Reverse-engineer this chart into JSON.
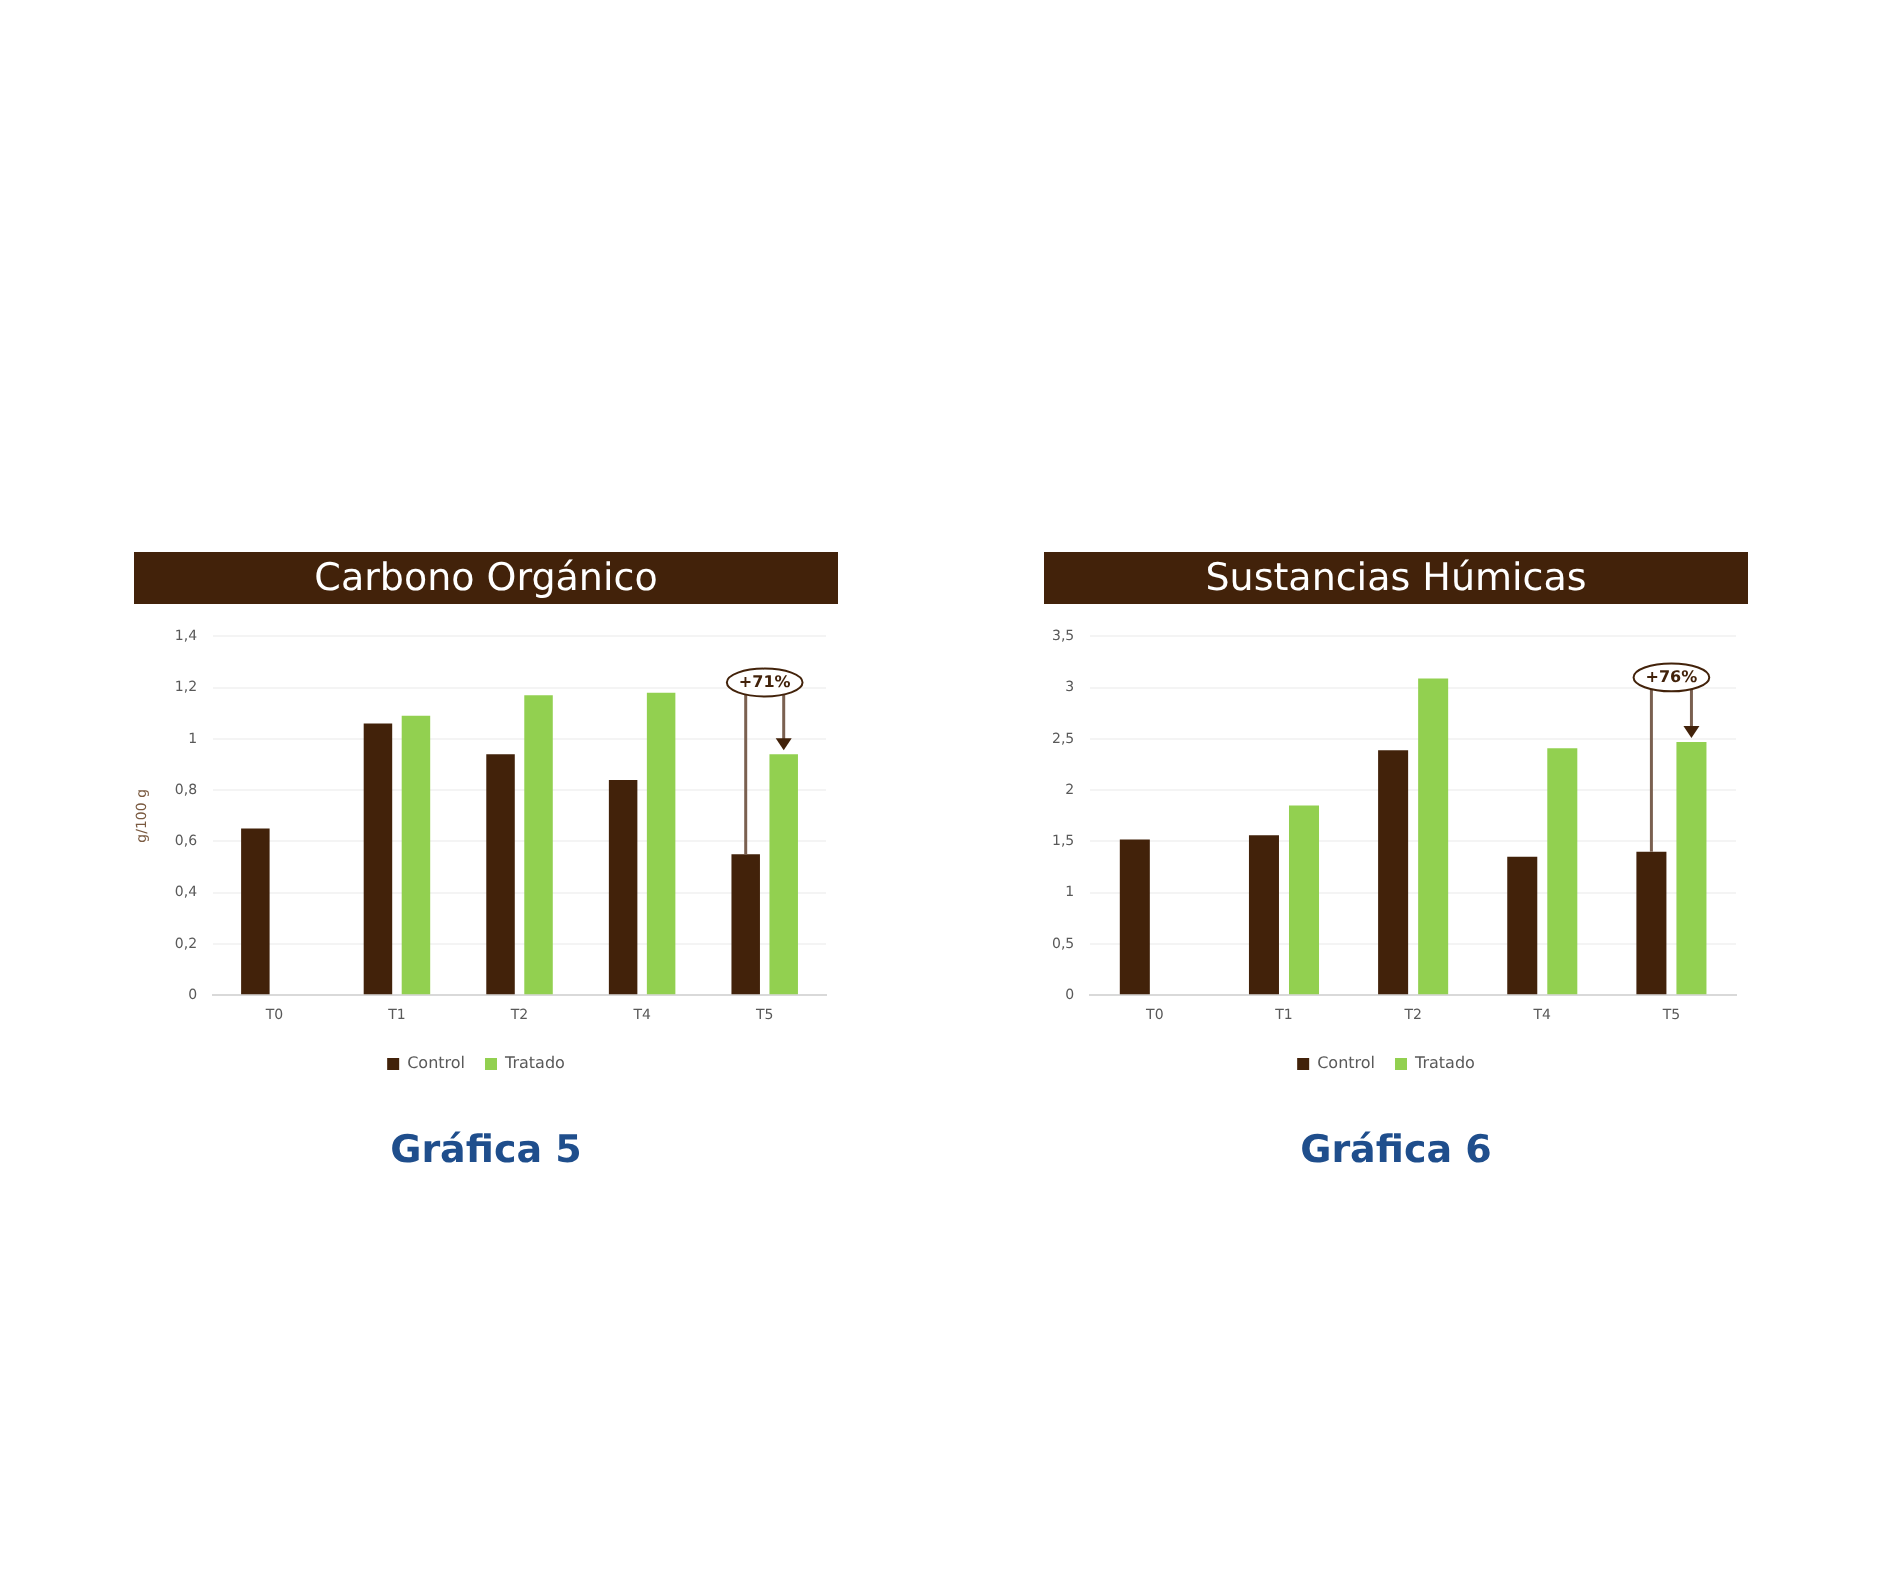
{
  "chart_data": [
    {
      "type": "bar",
      "title": "Carbono Orgánico",
      "ylabel": "g/100 g",
      "categories": [
        "T0",
        "T1",
        "T2",
        "T4",
        "T5"
      ],
      "series": [
        {
          "name": "Control",
          "color": "#42220a",
          "values": [
            0.65,
            1.06,
            0.94,
            0.84,
            0.55
          ]
        },
        {
          "name": "Tratado",
          "color": "#92d050",
          "values": [
            null,
            1.09,
            1.17,
            1.18,
            0.94
          ]
        }
      ],
      "ylim": [
        0,
        1.4
      ],
      "yticks": [
        0,
        {
          "value": 0.2,
          "label": "0,2"
        },
        {
          "value": 0.4,
          "label": "0,4"
        },
        {
          "value": 0.6,
          "label": "0,6"
        },
        {
          "value": 0.8,
          "label": "0,8"
        },
        1,
        {
          "value": 1.2,
          "label": "1,2"
        },
        {
          "value": 1.4,
          "label": "1,4"
        }
      ],
      "grid": "y",
      "legend": "bottom",
      "annotations": [
        {
          "text": "+71%",
          "x": "T5",
          "y": 1.22
        },
        "Gráfica 5"
      ]
    },
    {
      "type": "bar",
      "title": "Sustancias Húmicas",
      "categories": [
        "T0",
        "T1",
        "T2",
        "T4",
        "T5"
      ],
      "series": [
        {
          "name": "Control",
          "color": "#42220a",
          "values": [
            1.52,
            1.56,
            2.39,
            1.35,
            1.4
          ]
        },
        {
          "name": "Tratado",
          "color": "#92d050",
          "values": [
            null,
            1.85,
            3.09,
            2.41,
            2.47
          ]
        }
      ],
      "ylim": [
        0,
        3.5
      ],
      "yticks": [
        0,
        {
          "value": 0.5,
          "label": "0,5"
        },
        1,
        {
          "value": 1.5,
          "label": "1,5"
        },
        2,
        {
          "value": 2.5,
          "label": "2,5"
        },
        3,
        {
          "value": 3.5,
          "label": "3,5"
        }
      ],
      "grid": "y",
      "legend": "bottom",
      "annotations": [
        {
          "text": "+76%",
          "x": "T5",
          "y": 3.1
        },
        "Gráfica 6"
      ]
    }
  ]
}
